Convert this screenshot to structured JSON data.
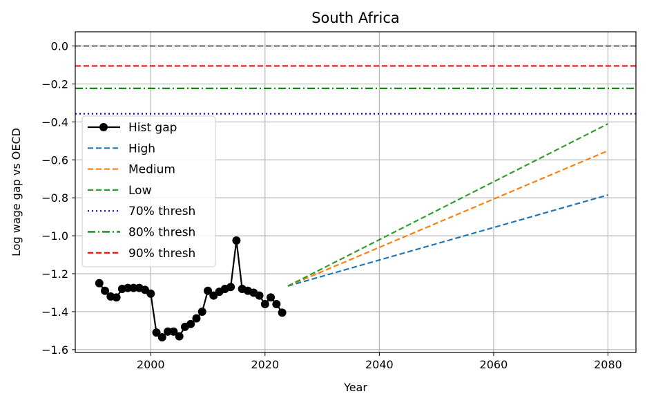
{
  "chart_data": {
    "type": "line",
    "title": "South Africa",
    "xlabel": "Year",
    "ylabel": "Log wage gap vs OECD",
    "xlim": [
      1986.8,
      2084.9
    ],
    "ylim": [
      -1.615,
      0.075
    ],
    "xticks": [
      2000,
      2020,
      2040,
      2060,
      2080
    ],
    "yticks": [
      0.0,
      -0.2,
      -0.4,
      -0.6,
      -0.8,
      -1.0,
      -1.2,
      -1.4,
      -1.6
    ],
    "ytick_labels": [
      "0.0",
      "−0.2",
      "−0.4",
      "−0.6",
      "−0.8",
      "−1.0",
      "−1.2",
      "−1.4",
      "−1.6"
    ],
    "grid": true,
    "legend_position": "center-left",
    "hlines": [
      {
        "y": 0.0,
        "color": "#000000",
        "style": "dashed",
        "legend": false
      },
      {
        "y": -0.105,
        "color": "#ff0000",
        "style": "dashed",
        "legend": true,
        "name": "90% thresh"
      },
      {
        "y": -0.223,
        "color": "#008000",
        "style": "dashdot",
        "legend": true,
        "name": "80% thresh"
      },
      {
        "y": -0.357,
        "color": "#0000ff",
        "style": "dotted",
        "legend": true,
        "name": "70% thresh"
      }
    ],
    "series": [
      {
        "name": "Hist gap",
        "color": "#000000",
        "style": "solid-marker",
        "x": [
          1991,
          1992,
          1993,
          1994,
          1995,
          1996,
          1997,
          1998,
          1999,
          2000,
          2001,
          2002,
          2003,
          2004,
          2005,
          2006,
          2007,
          2008,
          2009,
          2010,
          2011,
          2012,
          2013,
          2014,
          2015,
          2016,
          2017,
          2018,
          2019,
          2020,
          2021,
          2022,
          2023
        ],
        "values": [
          -1.25,
          -1.29,
          -1.32,
          -1.325,
          -1.28,
          -1.275,
          -1.275,
          -1.275,
          -1.285,
          -1.305,
          -1.51,
          -1.535,
          -1.505,
          -1.505,
          -1.53,
          -1.48,
          -1.465,
          -1.435,
          -1.4,
          -1.29,
          -1.315,
          -1.295,
          -1.28,
          -1.27,
          -1.025,
          -1.28,
          -1.29,
          -1.3,
          -1.315,
          -1.36,
          -1.325,
          -1.36,
          -1.405
        ]
      },
      {
        "name": "High",
        "color": "#1f77b4",
        "style": "dashed",
        "x": [
          2024,
          2080
        ],
        "values": [
          -1.265,
          -0.785
        ]
      },
      {
        "name": "Medium",
        "color": "#ff7f0e",
        "style": "dashed",
        "x": [
          2024,
          2080
        ],
        "values": [
          -1.265,
          -0.552
        ]
      },
      {
        "name": "Low",
        "color": "#2ca02c",
        "style": "dashed",
        "x": [
          2024,
          2080
        ],
        "values": [
          -1.265,
          -0.41
        ]
      }
    ],
    "legend": [
      {
        "label": "Hist gap",
        "color": "#000000",
        "style": "solid-marker"
      },
      {
        "label": "High",
        "color": "#1f77b4",
        "style": "dashed"
      },
      {
        "label": "Medium",
        "color": "#ff7f0e",
        "style": "dashed"
      },
      {
        "label": "Low",
        "color": "#2ca02c",
        "style": "dashed"
      },
      {
        "label": "70% thresh",
        "color": "#0000ff",
        "style": "dotted"
      },
      {
        "label": "80% thresh",
        "color": "#008000",
        "style": "dashdot"
      },
      {
        "label": "90% thresh",
        "color": "#ff0000",
        "style": "dashed"
      }
    ]
  }
}
